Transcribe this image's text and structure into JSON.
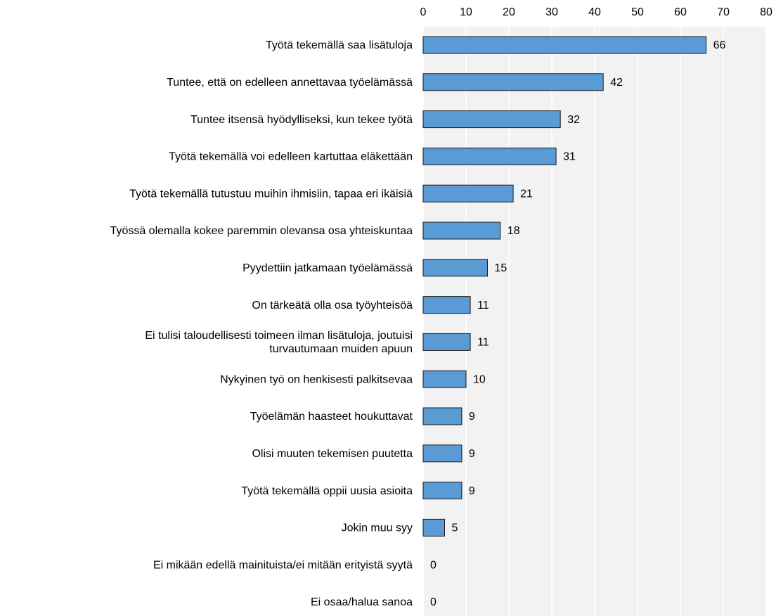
{
  "chart_data": {
    "type": "barh",
    "categories": [
      "Työtä tekemällä saa lisätuloja",
      "Tuntee, että on edelleen annettavaa työelämässä",
      "Tuntee itsensä hyödylliseksi, kun tekee työtä",
      "Työtä tekemällä voi edelleen kartuttaa eläkettään",
      "Työtä tekemällä tutustuu muihin ihmisiin, tapaa eri ikäisiä",
      "Työssä olemalla kokee paremmin olevansa osa yhteiskuntaa",
      "Pyydettiin jatkamaan työelämässä",
      "On tärkeätä olla osa työyhteisöä",
      "Ei tulisi taloudellisesti toimeen ilman lisätuloja, joutuisi\nturvautumaan muiden apuun",
      "Nykyinen työ on henkisesti palkitsevaa",
      "Työelämän haasteet houkuttavat",
      "Olisi muuten tekemisen puutetta",
      "Työtä tekemällä oppii uusia asioita",
      "Jokin muu syy",
      "Ei mikään edellä mainituista/ei mitään erityistä syytä",
      "Ei osaa/halua sanoa"
    ],
    "values": [
      66,
      42,
      32,
      31,
      21,
      18,
      15,
      11,
      11,
      10,
      9,
      9,
      9,
      5,
      0,
      0
    ],
    "color": "#5b9bd5",
    "xlim": [
      0,
      80
    ],
    "xticks": [
      0,
      10,
      20,
      30,
      40,
      50,
      60,
      70,
      80
    ],
    "grid": true
  }
}
